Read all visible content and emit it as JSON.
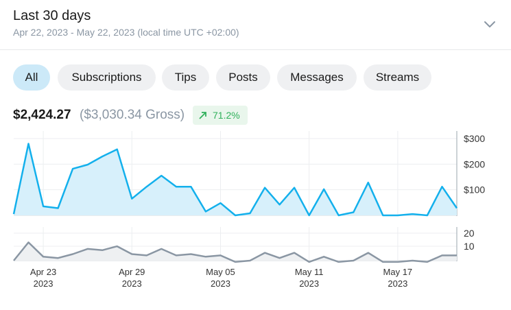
{
  "header": {
    "title": "Last 30 days",
    "subtitle": "Apr 22, 2023 - May 22, 2023 (local time UTC +02:00)"
  },
  "icons": {
    "expand": "chevron-down-icon",
    "trend": "arrow-up-right-icon"
  },
  "tabs": [
    {
      "label": "All",
      "active": true
    },
    {
      "label": "Subscriptions",
      "active": false
    },
    {
      "label": "Tips",
      "active": false
    },
    {
      "label": "Posts",
      "active": false
    },
    {
      "label": "Messages",
      "active": false
    },
    {
      "label": "Streams",
      "active": false
    }
  ],
  "summary": {
    "net": "$2,424.27",
    "gross": "($3,030.34 Gross)",
    "change": "71.2%"
  },
  "colors": {
    "earnings_line": "#13b0ec",
    "earnings_fill": "#d7f0fb",
    "count_line": "#8a96a3",
    "count_fill": "#eef0f2",
    "active_tab": "#cce9f8",
    "badge_bg": "#e9f6ec",
    "badge_text": "#2fb05a"
  },
  "chart_data": [
    {
      "type": "area",
      "x": [
        "Apr 21",
        "Apr 22",
        "Apr 23",
        "Apr 24",
        "Apr 25",
        "Apr 26",
        "Apr 27",
        "Apr 28",
        "Apr 29",
        "Apr 30",
        "May 01",
        "May 02",
        "May 03",
        "May 04",
        "May 05",
        "May 06",
        "May 07",
        "May 08",
        "May 09",
        "May 10",
        "May 11",
        "May 12",
        "May 13",
        "May 14",
        "May 15",
        "May 16",
        "May 17",
        "May 18",
        "May 19",
        "May 20",
        "May 21"
      ],
      "series": [
        {
          "values": [
            5,
            280,
            35,
            28,
            182,
            198,
            230,
            258,
            65,
            112,
            155,
            112,
            112,
            15,
            48,
            0,
            8,
            108,
            42,
            108,
            0,
            102,
            0,
            12,
            128,
            0,
            0,
            5,
            0,
            112,
            28
          ]
        }
      ],
      "ylim": [
        0,
        300
      ],
      "yticks": [
        "$300",
        "$200",
        "$100"
      ],
      "xlabel": "",
      "ylabel": "",
      "grid": true,
      "legend": "none"
    },
    {
      "type": "area",
      "x": [
        "Apr 21",
        "Apr 22",
        "Apr 23",
        "Apr 24",
        "Apr 25",
        "Apr 26",
        "Apr 27",
        "Apr 28",
        "Apr 29",
        "Apr 30",
        "May 01",
        "May 02",
        "May 03",
        "May 04",
        "May 05",
        "May 06",
        "May 07",
        "May 08",
        "May 09",
        "May 10",
        "May 11",
        "May 12",
        "May 13",
        "May 14",
        "May 15",
        "May 16",
        "May 17",
        "May 18",
        "May 19",
        "May 20",
        "May 21"
      ],
      "series": [
        {
          "values": [
            0,
            14,
            3,
            2,
            5,
            9,
            8,
            11,
            5,
            4,
            9,
            4,
            5,
            3,
            4,
            -1,
            0,
            6,
            2,
            6,
            -1,
            3,
            -1,
            0,
            6,
            -1,
            -1,
            0,
            -1,
            4,
            4
          ]
        }
      ],
      "ylim": [
        0,
        20
      ],
      "yticks": [
        "20",
        "10"
      ],
      "xticks": [
        {
          "label": "Apr 23",
          "year": "2023"
        },
        {
          "label": "Apr 29",
          "year": "2023"
        },
        {
          "label": "May 05",
          "year": "2023"
        },
        {
          "label": "May 11",
          "year": "2023"
        },
        {
          "label": "May 17",
          "year": "2023"
        }
      ],
      "xlabel": "",
      "ylabel": "",
      "grid": true,
      "legend": "none"
    }
  ]
}
